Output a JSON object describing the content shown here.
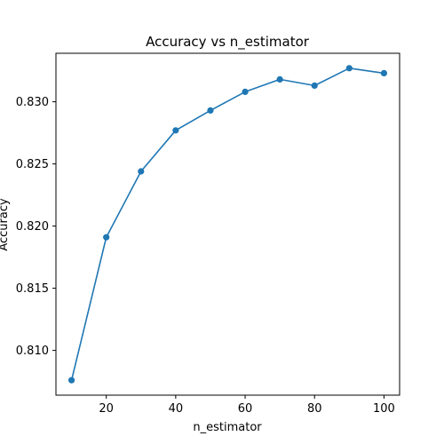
{
  "chart_data": {
    "type": "line",
    "title": "Accuracy vs n_estimator",
    "xlabel": "n_estimator",
    "ylabel": "Accuracy",
    "x": [
      10,
      20,
      30,
      40,
      50,
      60,
      70,
      80,
      90,
      100
    ],
    "series": [
      {
        "values": [
          0.8076,
          0.8191,
          0.8244,
          0.8277,
          0.8293,
          0.8308,
          0.8318,
          0.8313,
          0.8327,
          0.8323
        ],
        "color": "#1f77b4",
        "marker": "circle"
      }
    ],
    "xlim": [
      5.5,
      104.5
    ],
    "ylim": [
      0.8064,
      0.8339
    ],
    "xticks": [
      20,
      40,
      60,
      80,
      100
    ],
    "xtick_labels": [
      "20",
      "40",
      "60",
      "80",
      "100"
    ],
    "yticks": [
      0.81,
      0.815,
      0.82,
      0.825,
      0.83
    ],
    "ytick_labels": [
      "0.810",
      "0.815",
      "0.820",
      "0.825",
      "0.830"
    ],
    "grid": false,
    "legend": false
  }
}
